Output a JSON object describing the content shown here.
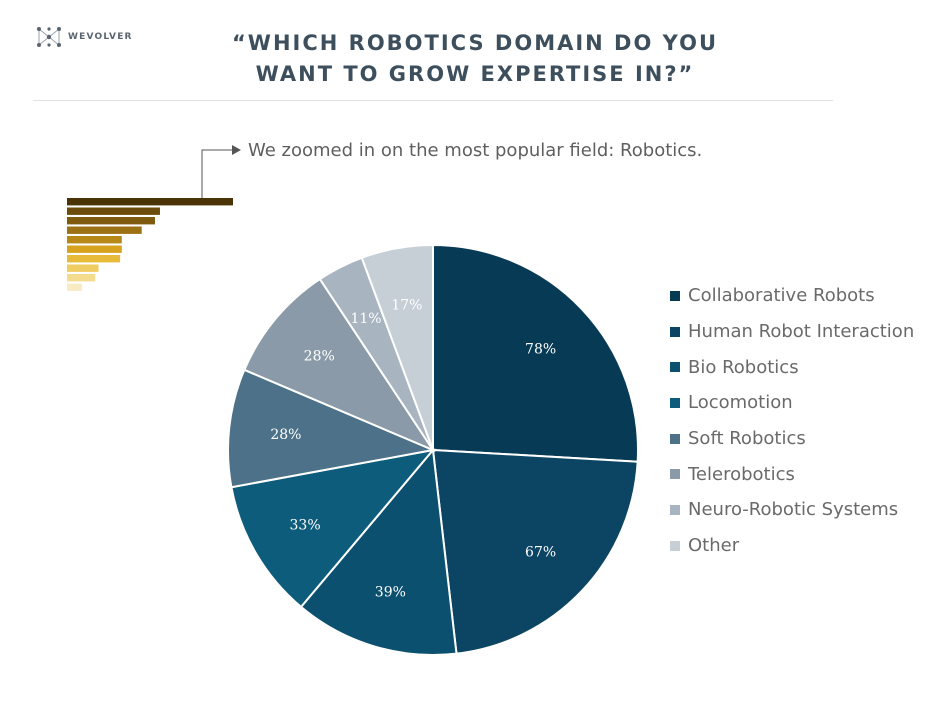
{
  "header": {
    "logo_text": "WEVOLVER",
    "title_line1": "“WHICH ROBOTICS DOMAIN DO YOU",
    "title_line2": "WANT TO GROW EXPERTISE IN?”"
  },
  "annotation": {
    "text": "We zoomed in on the most popular field: Robotics."
  },
  "overview_bars": {
    "values": [
      100,
      56,
      53,
      45,
      33,
      33,
      32,
      19,
      17,
      9
    ],
    "colors": [
      "#4a3407",
      "#6b4c0c",
      "#7e5a0f",
      "#9c7113",
      "#b88816",
      "#d7a21d",
      "#e7ba3a",
      "#f0cd63",
      "#f4dc8e",
      "#f8ebc4"
    ]
  },
  "chart_data": {
    "type": "pie",
    "title": "“WHICH ROBOTICS DOMAIN DO YOU WANT TO GROW EXPERTISE IN?”",
    "legend_position": "right",
    "categories": [
      "Collaborative Robots",
      "Human Robot Interaction",
      "Bio Robotics",
      "Locomotion",
      "Soft Robotics",
      "Telerobotics",
      "Neuro-Robotic Systems",
      "Other"
    ],
    "values": [
      78,
      67,
      39,
      33,
      28,
      28,
      11,
      17
    ],
    "labels": [
      "78%",
      "67%",
      "39%",
      "33%",
      "28%",
      "28%",
      "11%",
      "17%"
    ],
    "colors": [
      "#073a55",
      "#0b4563",
      "#0c5070",
      "#0e5c7b",
      "#4c7188",
      "#8a9aa8",
      "#a8b4bf",
      "#c6ced6"
    ]
  }
}
